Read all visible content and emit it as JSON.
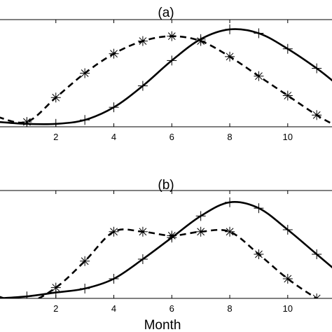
{
  "chart_data": [
    {
      "type": "line",
      "title": "(a)",
      "xlabel": "",
      "ylabel": "",
      "xlim": [
        0,
        11.6
      ],
      "ylim": [
        0,
        1.1
      ],
      "xticks": [
        2,
        4,
        6,
        8,
        10
      ],
      "grid": false,
      "legend": "none",
      "series": [
        {
          "style": "solid",
          "marker": "plus",
          "x": [
            0,
            1,
            2,
            3,
            4,
            5,
            6,
            7,
            8,
            9,
            10,
            11,
            11.6
          ],
          "y": [
            0.05,
            0.03,
            0.03,
            0.07,
            0.2,
            0.42,
            0.68,
            0.9,
            1.0,
            0.96,
            0.8,
            0.6,
            0.46
          ],
          "markers_x": [
            1,
            2,
            3,
            4,
            5,
            6,
            7,
            8,
            9,
            10,
            11
          ],
          "markers_y": [
            0.03,
            0.03,
            0.07,
            0.2,
            0.42,
            0.68,
            0.9,
            1.0,
            0.96,
            0.8,
            0.6
          ]
        },
        {
          "style": "dashed",
          "marker": "asterisk",
          "x": [
            0,
            1,
            2,
            3,
            4,
            5,
            6,
            7,
            8,
            9,
            10,
            11,
            11.6
          ],
          "y": [
            0.1,
            0.05,
            0.3,
            0.55,
            0.75,
            0.88,
            0.93,
            0.88,
            0.72,
            0.52,
            0.32,
            0.12,
            0.02
          ],
          "markers_x": [
            1,
            2,
            3,
            4,
            5,
            6,
            7,
            8,
            9,
            10,
            11
          ],
          "markers_y": [
            0.05,
            0.3,
            0.55,
            0.75,
            0.88,
            0.93,
            0.88,
            0.72,
            0.52,
            0.32,
            0.12
          ]
        }
      ]
    },
    {
      "type": "line",
      "title": "(b)",
      "xlabel": "Month",
      "ylabel": "",
      "xlim": [
        0,
        11.6
      ],
      "ylim": [
        0,
        1.1
      ],
      "xticks": [
        2,
        4,
        6,
        8,
        10
      ],
      "grid": false,
      "legend": "none",
      "series": [
        {
          "style": "solid",
          "marker": "plus",
          "x": [
            0,
            1,
            2,
            3,
            4,
            5,
            6,
            7,
            8,
            9,
            10,
            11,
            11.6
          ],
          "y": [
            0.0,
            0.02,
            0.06,
            0.1,
            0.2,
            0.4,
            0.62,
            0.84,
            0.98,
            0.92,
            0.7,
            0.45,
            0.3
          ],
          "markers_x": [
            1,
            2,
            3,
            4,
            5,
            6,
            7,
            8,
            9,
            10,
            11
          ],
          "markers_y": [
            0.02,
            0.06,
            0.1,
            0.2,
            0.4,
            0.62,
            0.84,
            0.98,
            0.92,
            0.7,
            0.45
          ]
        },
        {
          "style": "dashed",
          "marker": "asterisk",
          "x": [
            0,
            1,
            2,
            3,
            4,
            5,
            6,
            7,
            8,
            9,
            10,
            11,
            11.6
          ],
          "y": [
            0.02,
            -0.04,
            0.11,
            0.38,
            0.68,
            0.68,
            0.64,
            0.68,
            0.68,
            0.45,
            0.2,
            0.0,
            -0.08
          ],
          "markers_x": [
            1,
            2,
            3,
            4,
            5,
            6,
            7,
            8,
            9,
            10,
            11
          ],
          "markers_y": [
            -0.04,
            0.11,
            0.38,
            0.68,
            0.68,
            0.64,
            0.68,
            0.68,
            0.45,
            0.2,
            0.0
          ]
        }
      ]
    }
  ]
}
